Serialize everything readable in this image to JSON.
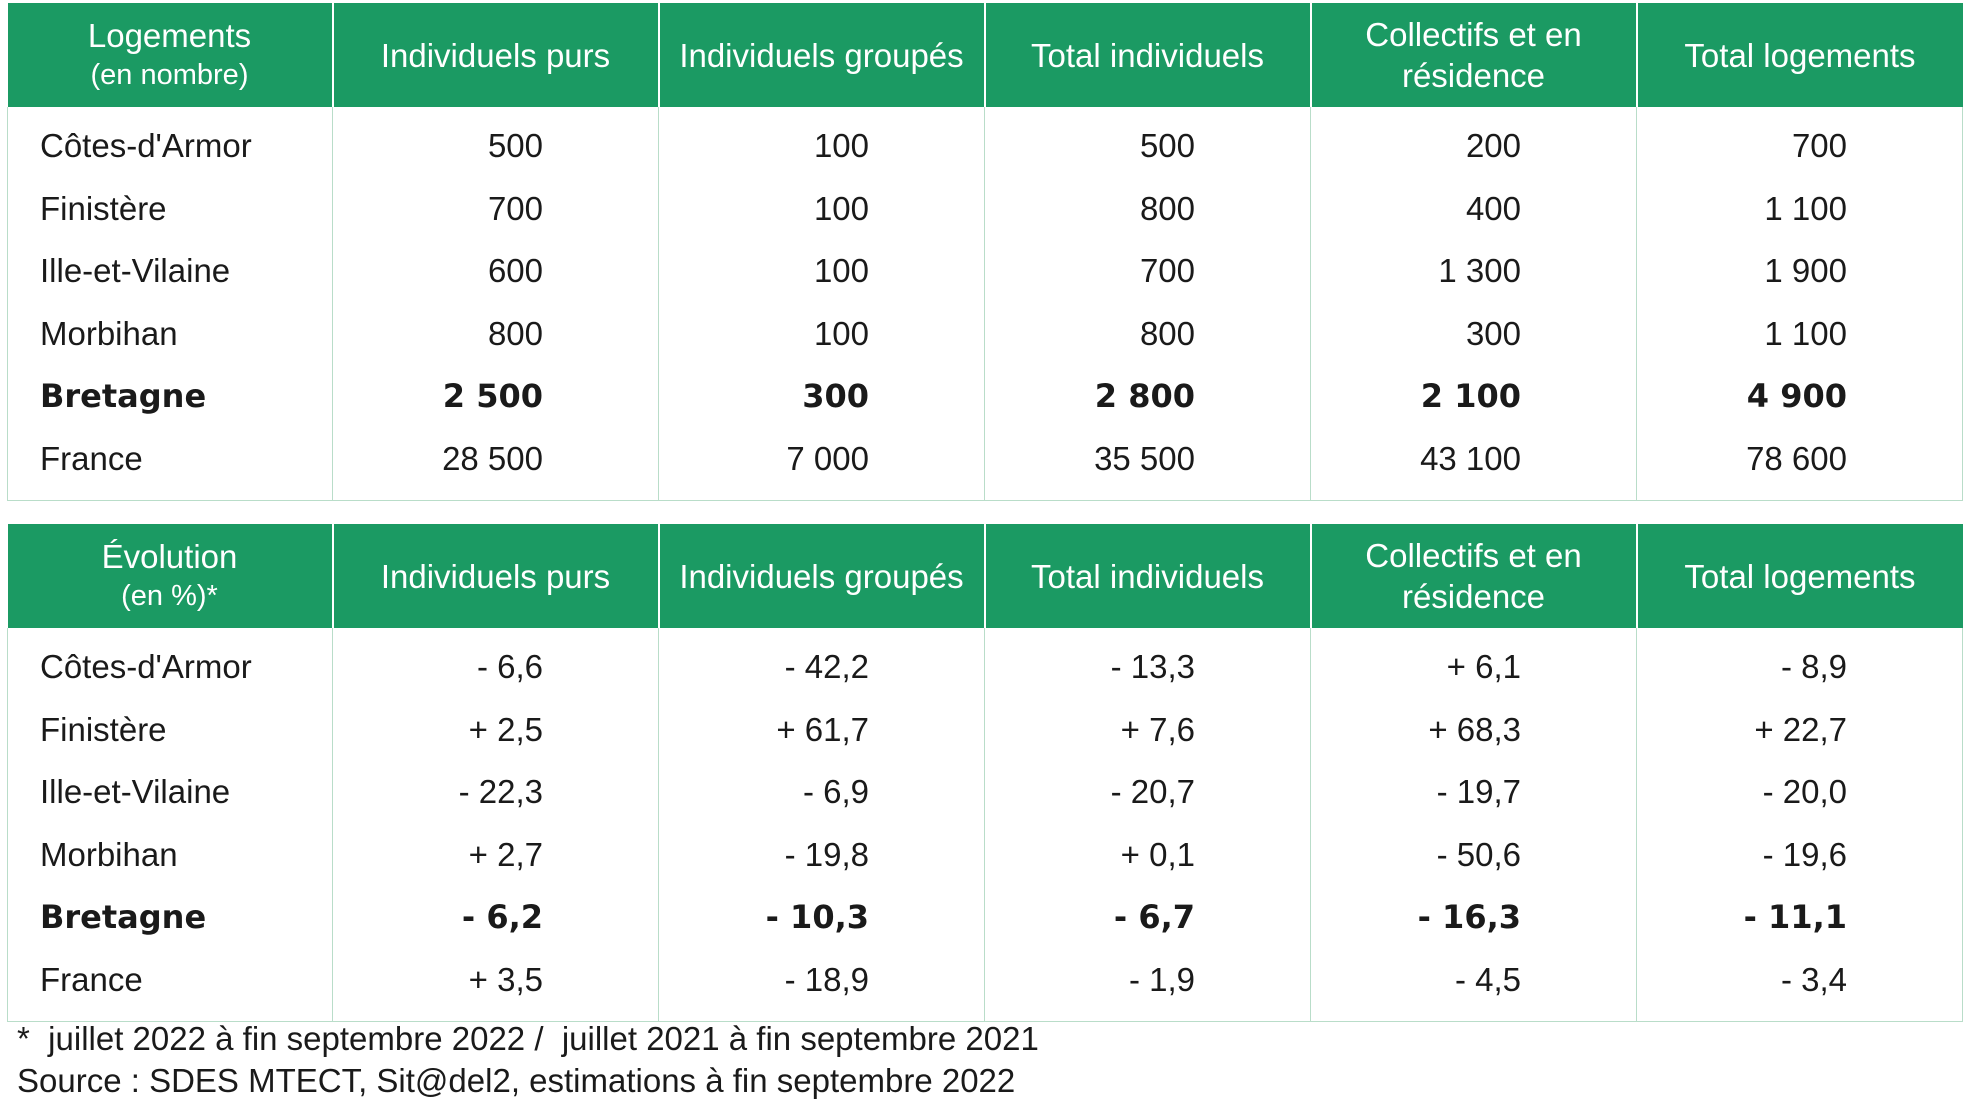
{
  "table1": {
    "headers": [
      {
        "main": "Logements",
        "sub": "(en nombre)"
      },
      {
        "main": "Individuels purs",
        "sub": ""
      },
      {
        "main": "Individuels groupés",
        "sub": ""
      },
      {
        "main": "Total individuels",
        "sub": ""
      },
      {
        "main": "Collectifs et en résidence",
        "sub": ""
      },
      {
        "main": "Total logements",
        "sub": ""
      }
    ],
    "rows": [
      {
        "label": "Côtes-d'Armor",
        "values": [
          "500",
          "100",
          "500",
          "200",
          "700"
        ]
      },
      {
        "label": "Finistère",
        "values": [
          "700",
          "100",
          "800",
          "400",
          "1 100"
        ]
      },
      {
        "label": "Ille-et-Vilaine",
        "values": [
          "600",
          "100",
          "700",
          "1 300",
          "1 900"
        ]
      },
      {
        "label": "Morbihan",
        "values": [
          "800",
          "100",
          "800",
          "300",
          "1 100"
        ]
      },
      {
        "label": "Bretagne",
        "values": [
          "2 500",
          "300",
          "2 800",
          "2 100",
          "4 900"
        ]
      },
      {
        "label": "France",
        "values": [
          "28 500",
          "7 000",
          "35 500",
          "43 100",
          "78 600"
        ]
      }
    ]
  },
  "table2": {
    "headers": [
      {
        "main": "Évolution",
        "sub": "(en %)*"
      },
      {
        "main": "Individuels purs",
        "sub": ""
      },
      {
        "main": "Individuels groupés",
        "sub": ""
      },
      {
        "main": "Total individuels",
        "sub": ""
      },
      {
        "main": "Collectifs et en résidence",
        "sub": ""
      },
      {
        "main": "Total logements",
        "sub": ""
      }
    ],
    "rows": [
      {
        "label": "Côtes-d'Armor",
        "values": [
          "- 6,6",
          "- 42,2",
          "- 13,3",
          "+ 6,1",
          "- 8,9"
        ]
      },
      {
        "label": "Finistère",
        "values": [
          "+ 2,5",
          "+ 61,7",
          "+ 7,6",
          "+ 68,3",
          "+ 22,7"
        ]
      },
      {
        "label": "Ille-et-Vilaine",
        "values": [
          "- 22,3",
          "- 6,9",
          "- 20,7",
          "- 19,7",
          "- 20,0"
        ]
      },
      {
        "label": "Morbihan",
        "values": [
          "+ 2,7",
          "- 19,8",
          "+ 0,1",
          "- 50,6",
          "- 19,6"
        ]
      },
      {
        "label": "Bretagne",
        "values": [
          "- 6,2",
          "- 10,3",
          "- 6,7",
          "- 16,3",
          "- 11,1"
        ]
      },
      {
        "label": "France",
        "values": [
          "+ 3,5",
          "- 18,9",
          "- 1,9",
          "- 4,5",
          "- 3,4"
        ]
      }
    ]
  },
  "notes": {
    "footnote": "*  juillet 2022 à fin septembre 2022 /  juillet 2021 à fin septembre 2021",
    "source": "Source : SDES MTECT, Sit@del2, estimations à fin septembre 2022"
  },
  "colors": {
    "header_bg": "#1b9a63",
    "header_text": "#ffffff",
    "grid_line": "#b9ddc9"
  }
}
